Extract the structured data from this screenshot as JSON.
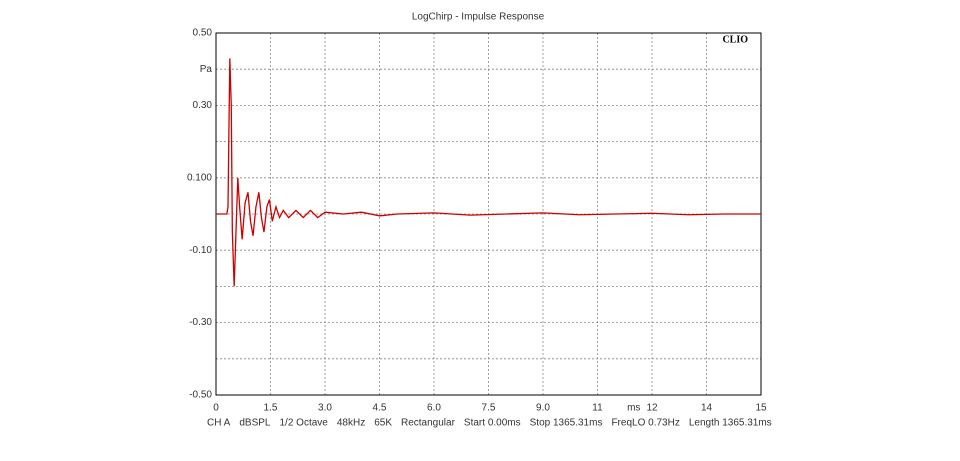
{
  "chart_data": {
    "type": "line",
    "title": "LogChirp - Impulse Response",
    "brand": "CLIO",
    "ylabel": "Pa",
    "xlabel": "ms",
    "xlim": [
      0,
      15
    ],
    "ylim": [
      -0.5,
      0.5
    ],
    "xticks": [
      0,
      1.5,
      {
        "value": 3,
        "label": "3.0"
      },
      4.5,
      {
        "value": 6,
        "label": "6.0"
      },
      7.5,
      {
        "value": 9,
        "label": "9.0"
      },
      {
        "value": 10.5,
        "label": "11"
      },
      12,
      {
        "value": 13.5,
        "label": "14"
      },
      15
    ],
    "yticks": [
      {
        "value": 0.5,
        "label": "0.50"
      },
      {
        "value": 0.4,
        "label": null
      },
      {
        "value": 0.3,
        "label": "0.30"
      },
      {
        "value": 0.2,
        "label": null
      },
      {
        "value": 0.1,
        "label": "0.100"
      },
      {
        "value": 0,
        "label": null
      },
      {
        "value": -0.1,
        "label": "-0.10"
      },
      {
        "value": -0.2,
        "label": null
      },
      {
        "value": -0.3,
        "label": "-0.30"
      },
      {
        "value": -0.4,
        "label": null
      },
      {
        "value": -0.5,
        "label": "-0.50"
      }
    ],
    "grid": true,
    "x": [
      0,
      0.3,
      0.33,
      0.38,
      0.42,
      0.45,
      0.5,
      0.55,
      0.6,
      0.65,
      0.72,
      0.8,
      0.88,
      0.95,
      1.02,
      1.1,
      1.18,
      1.25,
      1.32,
      1.4,
      1.47,
      1.55,
      1.65,
      1.75,
      1.85,
      2.0,
      2.2,
      2.4,
      2.6,
      2.8,
      3.0,
      3.5,
      4.0,
      4.5,
      5,
      6,
      7,
      8,
      9,
      10,
      11,
      12,
      13,
      14,
      15
    ],
    "series": [
      {
        "color": "#cc0000",
        "values": [
          0,
          0,
          0.02,
          0.43,
          0.3,
          -0.05,
          -0.2,
          -0.05,
          0.1,
          0.02,
          -0.07,
          0.03,
          0.06,
          -0.02,
          -0.06,
          0.02,
          0.06,
          -0.01,
          -0.05,
          0.02,
          0.04,
          -0.02,
          0.02,
          -0.01,
          0.01,
          -0.01,
          0.01,
          -0.01,
          0.01,
          -0.01,
          0.005,
          0,
          0.005,
          -0.005,
          0,
          0.003,
          -0.003,
          0,
          0.003,
          -0.002,
          0,
          0.002,
          -0.002,
          0,
          0
        ]
      }
    ],
    "footer": [
      "CH A",
      "dBSPL",
      "1/2 Octave",
      "48kHz",
      "65K",
      "Rectangular",
      "Start 0.00ms",
      "Stop 1365.31ms",
      "FreqLO 0.73Hz",
      "Length 1365.31ms"
    ]
  }
}
